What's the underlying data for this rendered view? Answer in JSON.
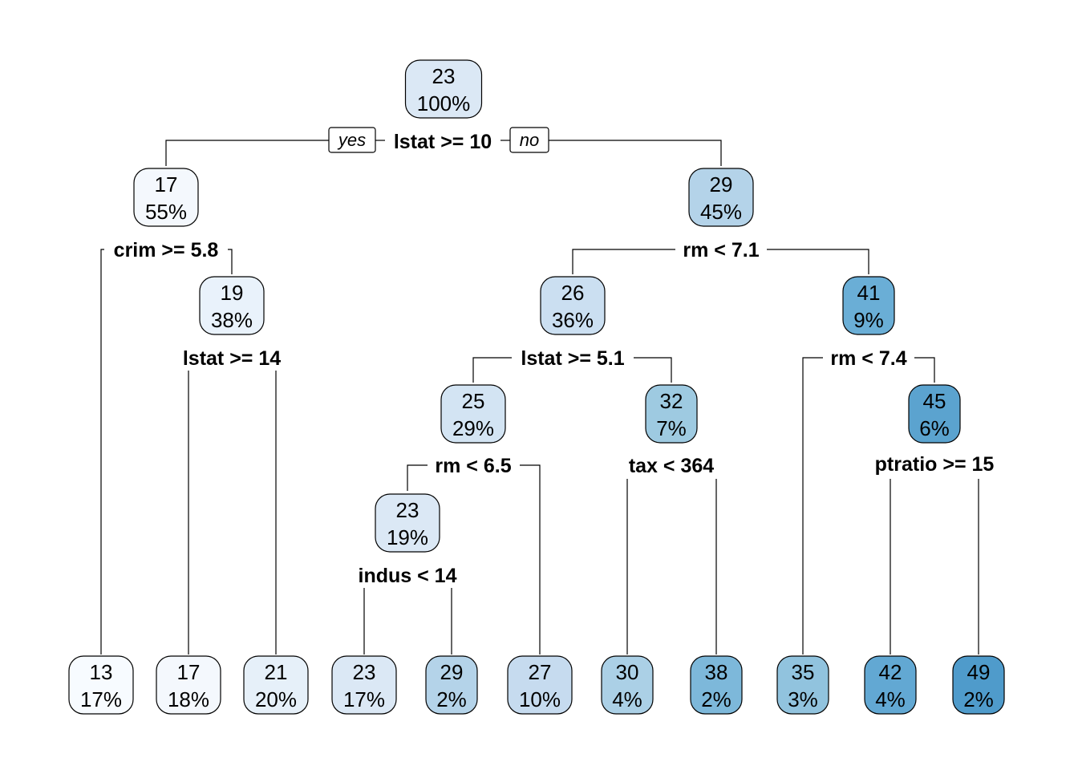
{
  "tree": {
    "labels": {
      "yes": "yes",
      "no": "no"
    },
    "nodes": {
      "root": {
        "value": "23",
        "percent": "100%",
        "color": "#dbe8f5"
      },
      "n17": {
        "value": "17",
        "percent": "55%",
        "color": "#f4f8fd"
      },
      "n29": {
        "value": "29",
        "percent": "45%",
        "color": "#b4d3e9"
      },
      "n19": {
        "value": "19",
        "percent": "38%",
        "color": "#e9f2fb"
      },
      "n26": {
        "value": "26",
        "percent": "36%",
        "color": "#cbdff1"
      },
      "n41": {
        "value": "41",
        "percent": "9%",
        "color": "#6aaed6"
      },
      "n25": {
        "value": "25",
        "percent": "29%",
        "color": "#d3e4f3"
      },
      "n32": {
        "value": "32",
        "percent": "7%",
        "color": "#9ecae1"
      },
      "n45": {
        "value": "45",
        "percent": "6%",
        "color": "#5ba3cf"
      },
      "n23b": {
        "value": "23",
        "percent": "19%",
        "color": "#dbe8f5"
      },
      "l13": {
        "value": "13",
        "percent": "17%",
        "color": "#f7fbff"
      },
      "l17": {
        "value": "17",
        "percent": "18%",
        "color": "#f4f8fd"
      },
      "l21": {
        "value": "21",
        "percent": "20%",
        "color": "#e6f0f9"
      },
      "l23": {
        "value": "23",
        "percent": "17%",
        "color": "#dbe8f5"
      },
      "l29": {
        "value": "29",
        "percent": "2%",
        "color": "#b4d3e9"
      },
      "l27": {
        "value": "27",
        "percent": "10%",
        "color": "#c6dbef"
      },
      "l30": {
        "value": "30",
        "percent": "4%",
        "color": "#abd0e6"
      },
      "l38": {
        "value": "38",
        "percent": "2%",
        "color": "#7db8da"
      },
      "l35": {
        "value": "35",
        "percent": "3%",
        "color": "#91c3de"
      },
      "l42": {
        "value": "42",
        "percent": "4%",
        "color": "#62a8d3"
      },
      "l49": {
        "value": "49",
        "percent": "2%",
        "color": "#4f9bcb"
      }
    },
    "splits": {
      "root": "lstat >= 10",
      "n17": "crim >= 5.8",
      "n29": "rm < 7.1",
      "n19": "lstat >= 14",
      "n26": "lstat >= 5.1",
      "n41": "rm < 7.4",
      "n25": "rm < 6.5",
      "n32": "tax < 364",
      "n45": "ptratio >= 15",
      "n23b": "indus < 14"
    }
  }
}
